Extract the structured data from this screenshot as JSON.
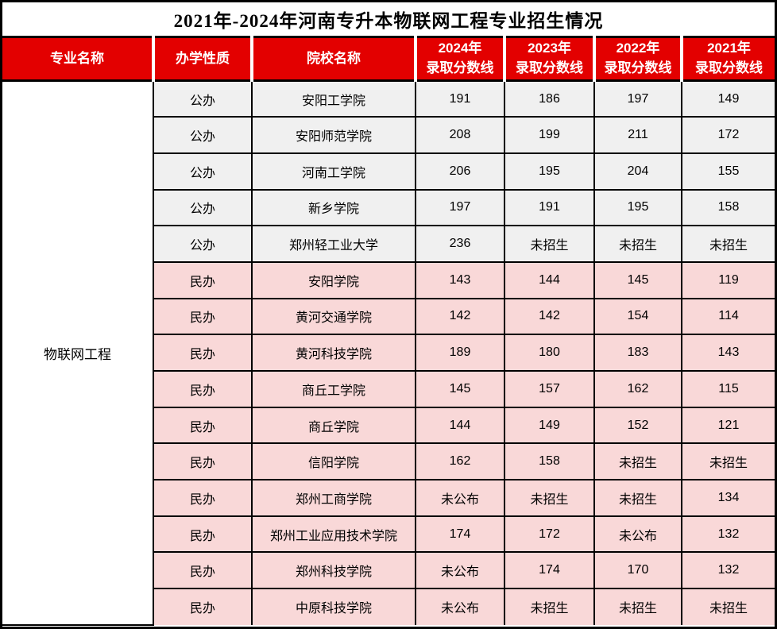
{
  "title": "2021年-2024年河南专升本物联网工程专业招生情况",
  "colors": {
    "header_bg": "#e30000",
    "header_text": "#ffffff",
    "public_row_bg": "#f0f0f0",
    "private_row_bg": "#f9d8d8",
    "major_cell_bg": "#ffffff",
    "border": "#000000",
    "title_text": "#000000"
  },
  "table": {
    "headers": {
      "major": "专业名称",
      "nature": "办学性质",
      "school": "院校名称",
      "years": [
        {
          "year": "2024年",
          "label": "录取分数线"
        },
        {
          "year": "2023年",
          "label": "录取分数线"
        },
        {
          "year": "2022年",
          "label": "录取分数线"
        },
        {
          "year": "2021年",
          "label": "录取分数线"
        }
      ]
    },
    "major": "物联网工程",
    "rows": [
      {
        "group": "public",
        "nature": "公办",
        "school": "安阳工学院",
        "scores": [
          "191",
          "186",
          "197",
          "149"
        ]
      },
      {
        "group": "public",
        "nature": "公办",
        "school": "安阳师范学院",
        "scores": [
          "208",
          "199",
          "211",
          "172"
        ]
      },
      {
        "group": "public",
        "nature": "公办",
        "school": "河南工学院",
        "scores": [
          "206",
          "195",
          "204",
          "155"
        ]
      },
      {
        "group": "public",
        "nature": "公办",
        "school": "新乡学院",
        "scores": [
          "197",
          "191",
          "195",
          "158"
        ]
      },
      {
        "group": "public",
        "nature": "公办",
        "school": "郑州轻工业大学",
        "scores": [
          "236",
          "未招生",
          "未招生",
          "未招生"
        ]
      },
      {
        "group": "private",
        "nature": "民办",
        "school": "安阳学院",
        "scores": [
          "143",
          "144",
          "145",
          "119"
        ]
      },
      {
        "group": "private",
        "nature": "民办",
        "school": "黄河交通学院",
        "scores": [
          "142",
          "142",
          "154",
          "114"
        ]
      },
      {
        "group": "private",
        "nature": "民办",
        "school": "黄河科技学院",
        "scores": [
          "189",
          "180",
          "183",
          "143"
        ]
      },
      {
        "group": "private",
        "nature": "民办",
        "school": "商丘工学院",
        "scores": [
          "145",
          "157",
          "162",
          "115"
        ]
      },
      {
        "group": "private",
        "nature": "民办",
        "school": "商丘学院",
        "scores": [
          "144",
          "149",
          "152",
          "121"
        ]
      },
      {
        "group": "private",
        "nature": "民办",
        "school": "信阳学院",
        "scores": [
          "162",
          "158",
          "未招生",
          "未招生"
        ]
      },
      {
        "group": "private",
        "nature": "民办",
        "school": "郑州工商学院",
        "scores": [
          "未公布",
          "未招生",
          "未招生",
          "134"
        ]
      },
      {
        "group": "private",
        "nature": "民办",
        "school": "郑州工业应用技术学院",
        "scores": [
          "174",
          "172",
          "未公布",
          "132"
        ]
      },
      {
        "group": "private",
        "nature": "民办",
        "school": "郑州科技学院",
        "scores": [
          "未公布",
          "174",
          "170",
          "132"
        ]
      },
      {
        "group": "private",
        "nature": "民办",
        "school": "中原科技学院",
        "scores": [
          "未公布",
          "未招生",
          "未招生",
          "未招生"
        ]
      }
    ]
  },
  "chart_data": {
    "type": "table",
    "title": "2021年-2024年河南专升本物联网工程专业招生情况",
    "columns": [
      "专业名称",
      "办学性质",
      "院校名称",
      "2024年录取分数线",
      "2023年录取分数线",
      "2022年录取分数线",
      "2021年录取分数线"
    ],
    "merged_first_column_value": "物联网工程",
    "rows": [
      [
        "物联网工程",
        "公办",
        "安阳工学院",
        "191",
        "186",
        "197",
        "149"
      ],
      [
        "物联网工程",
        "公办",
        "安阳师范学院",
        "208",
        "199",
        "211",
        "172"
      ],
      [
        "物联网工程",
        "公办",
        "河南工学院",
        "206",
        "195",
        "204",
        "155"
      ],
      [
        "物联网工程",
        "公办",
        "新乡学院",
        "197",
        "191",
        "195",
        "158"
      ],
      [
        "物联网工程",
        "公办",
        "郑州轻工业大学",
        "236",
        "未招生",
        "未招生",
        "未招生"
      ],
      [
        "物联网工程",
        "民办",
        "安阳学院",
        "143",
        "144",
        "145",
        "119"
      ],
      [
        "物联网工程",
        "民办",
        "黄河交通学院",
        "142",
        "142",
        "154",
        "114"
      ],
      [
        "物联网工程",
        "民办",
        "黄河科技学院",
        "189",
        "180",
        "183",
        "143"
      ],
      [
        "物联网工程",
        "民办",
        "商丘工学院",
        "145",
        "157",
        "162",
        "115"
      ],
      [
        "物联网工程",
        "民办",
        "商丘学院",
        "144",
        "149",
        "152",
        "121"
      ],
      [
        "物联网工程",
        "民办",
        "信阳学院",
        "162",
        "158",
        "未招生",
        "未招生"
      ],
      [
        "物联网工程",
        "民办",
        "郑州工商学院",
        "未公布",
        "未招生",
        "未招生",
        "134"
      ],
      [
        "物联网工程",
        "民办",
        "郑州工业应用技术学院",
        "174",
        "172",
        "未公布",
        "132"
      ],
      [
        "物联网工程",
        "民办",
        "郑州科技学院",
        "未公布",
        "174",
        "170",
        "132"
      ],
      [
        "物联网工程",
        "民办",
        "中原科技学院",
        "未公布",
        "未招生",
        "未招生",
        "未招生"
      ]
    ]
  }
}
